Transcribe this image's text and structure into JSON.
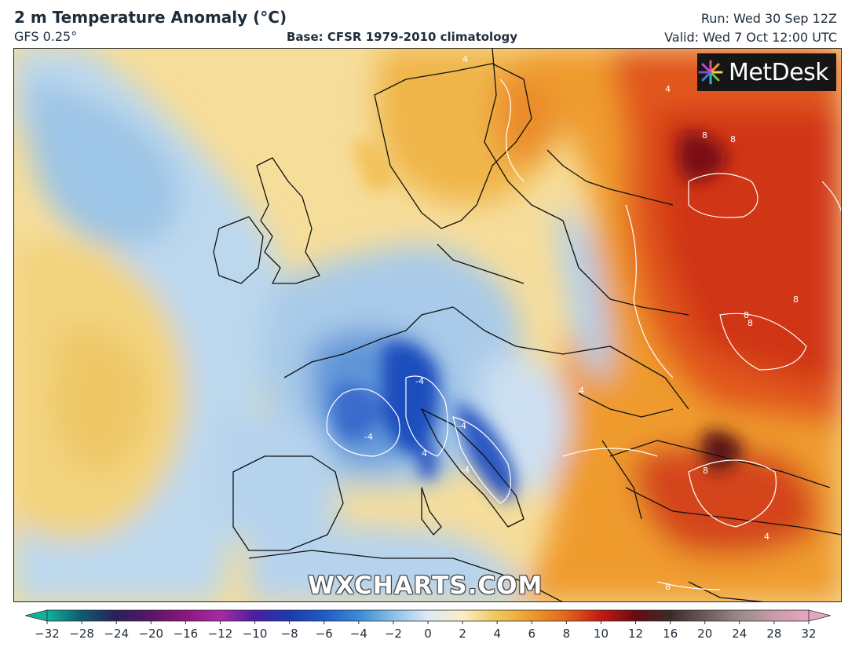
{
  "header": {
    "title": "2 m Temperature Anomaly (°C)",
    "model": "GFS 0.25°",
    "base": "Base: CFSR 1979-2010 climatology",
    "run": "Run: Wed 30 Sep 12Z",
    "valid": "Valid: Wed 7 Oct 12:00 UTC"
  },
  "logo": {
    "text": "MetDesk"
  },
  "watermark": "WXCHARTS.COM",
  "map": {
    "region": "Europe",
    "contour_interval": 4,
    "contour_labels": [
      "4",
      "-4",
      "8"
    ]
  },
  "colorbar": {
    "ticks": [
      "−32",
      "−28",
      "−24",
      "−20",
      "−16",
      "−12",
      "−10",
      "−8",
      "−6",
      "−4",
      "−2",
      "0",
      "2",
      "4",
      "6",
      "8",
      "10",
      "12",
      "16",
      "20",
      "24",
      "28",
      "32"
    ],
    "colors": [
      "#10b29a",
      "#0f5a6e",
      "#2a1f5c",
      "#5a1566",
      "#8a177e",
      "#a62aa2",
      "#4b1fa0",
      "#1b3ab0",
      "#1e5bc8",
      "#3b8ad8",
      "#8cc0e8",
      "#dde9f5",
      "#f7eec4",
      "#f2c65c",
      "#ec9a2c",
      "#e4641c",
      "#c21a10",
      "#6b0a12",
      "#3a2a2a",
      "#6b5a5a",
      "#9b8a8a",
      "#c89ba8",
      "#e6a5c2"
    ]
  }
}
